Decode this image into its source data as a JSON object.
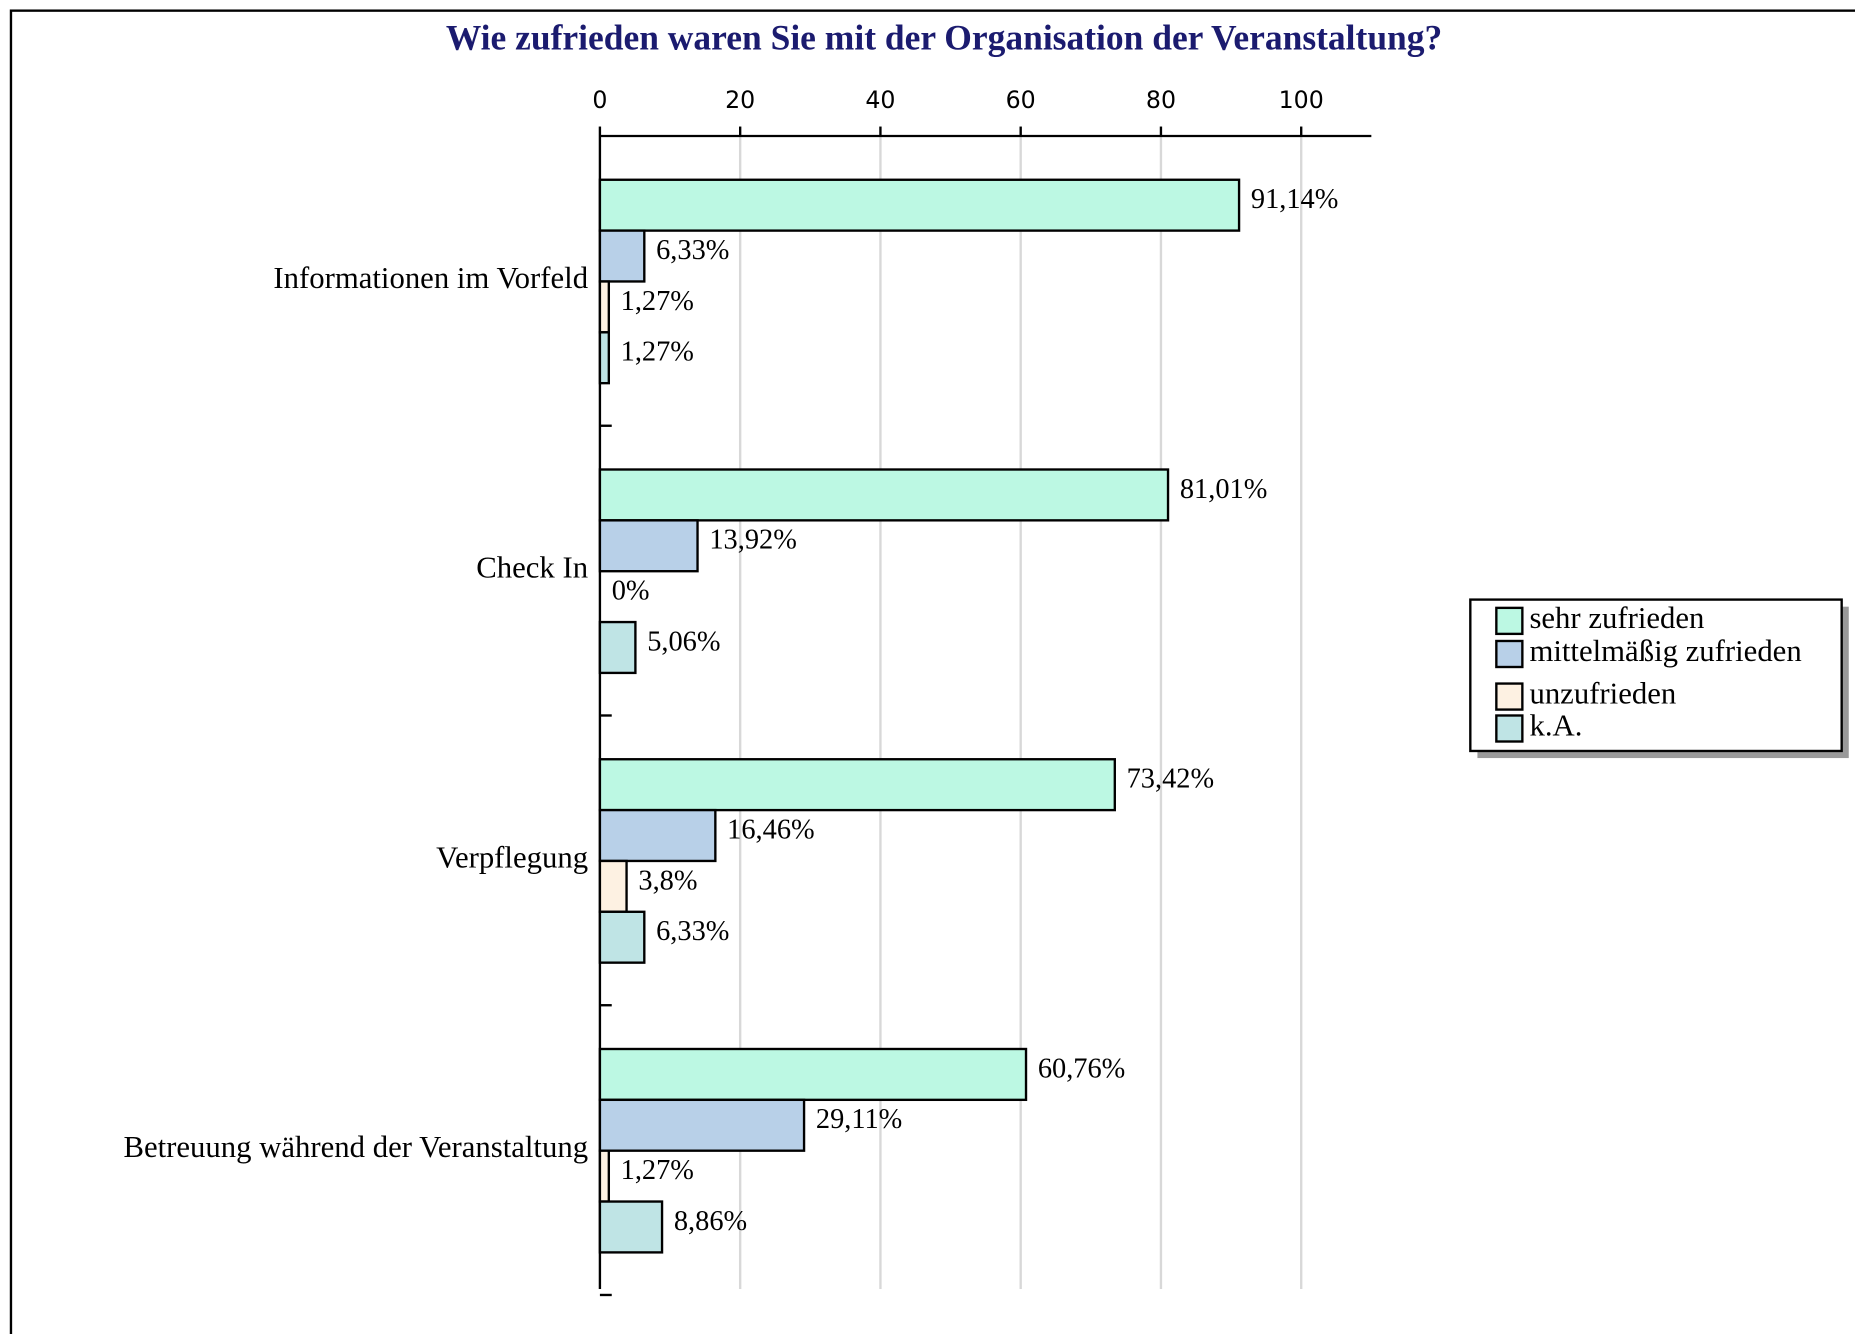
{
  "chart_data": {
    "type": "barh",
    "title": "Wie zufrieden waren Sie mit der Organisation der Veranstaltung?",
    "categories": [
      "Informationen im Vorfeld",
      "Check In",
      "Verpflegung",
      "Betreuung während der Veranstaltung"
    ],
    "series": [
      {
        "name": "sehr zufrieden",
        "color": "#bcf8e3",
        "values": [
          91.14,
          81.01,
          73.42,
          60.76
        ],
        "value_labels": [
          "91,14%",
          "81,01%",
          "73,42%",
          "60,76%"
        ]
      },
      {
        "name": "mittelmäßig zufrieden",
        "color": "#b8d0e8",
        "values": [
          6.33,
          13.92,
          16.46,
          29.11
        ],
        "value_labels": [
          "6,33%",
          "13,92%",
          "16,46%",
          "29,11%"
        ]
      },
      {
        "name": "unzufrieden",
        "color": "#fdf1e2",
        "values": [
          1.27,
          0,
          3.8,
          1.27
        ],
        "value_labels": [
          "1,27%",
          "0%",
          "3,8%",
          "1,27%"
        ]
      },
      {
        "name": "k.A.",
        "color": "#bfe4e5",
        "values": [
          1.27,
          5.06,
          6.33,
          8.86
        ],
        "value_labels": [
          "1,27%",
          "5,06%",
          "6,33%",
          "8,86%"
        ]
      }
    ],
    "xlim": [
      0,
      110
    ],
    "xticks": [
      0,
      20,
      40,
      60,
      80,
      100
    ],
    "grid": true,
    "legend": "right"
  }
}
